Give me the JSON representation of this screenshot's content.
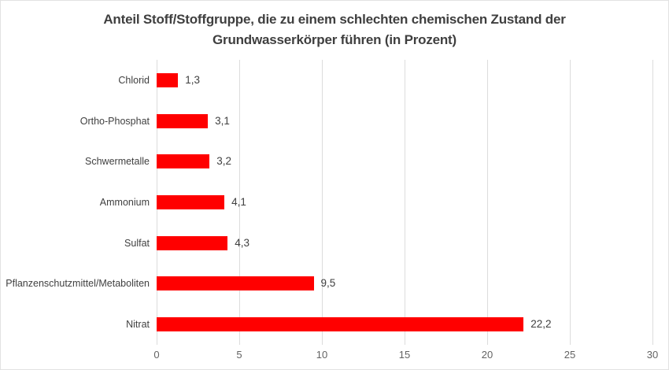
{
  "title": {
    "lines": [
      "Anteil Stoff/Stoffgruppe, die zu einem schlechten chemischen Zustand der",
      "Grundwasserkörper führen (in Prozent)"
    ]
  },
  "colors": {
    "bar": "#ff0000",
    "title_text": "#3f3f3f",
    "category_text": "#404040",
    "value_text": "#3f3f3f",
    "tick_text": "#636363",
    "gridline": "#dcdcdc",
    "frame_border": "#e2e2e2",
    "background": "#ffffff"
  },
  "chart_data": {
    "type": "bar",
    "orientation": "horizontal",
    "title": "Anteil Stoff/Stoffgruppe, die zu einem schlechten chemischen Zustand der Grundwasserkörper führen (in Prozent)",
    "categories": [
      "Chlorid",
      "Ortho-Phosphat",
      "Schwermetalle",
      "Ammonium",
      "Sulfat",
      "Pflanzenschutzmittel/Metaboliten",
      "Nitrat"
    ],
    "values": [
      1.3,
      3.1,
      3.2,
      4.1,
      4.3,
      9.5,
      22.2
    ],
    "value_labels": [
      "1,3",
      "3,1",
      "3,2",
      "4,1",
      "4,3",
      "9,5",
      "22,2"
    ],
    "xlabel": "",
    "ylabel": "",
    "xlim": [
      0,
      30
    ],
    "x_ticks": [
      0,
      5,
      10,
      15,
      20,
      25,
      30
    ],
    "x_tick_labels": [
      "0",
      "5",
      "10",
      "15",
      "20",
      "25",
      "30"
    ],
    "grid": "vertical",
    "legend": "none",
    "series_color": "#ff0000"
  }
}
